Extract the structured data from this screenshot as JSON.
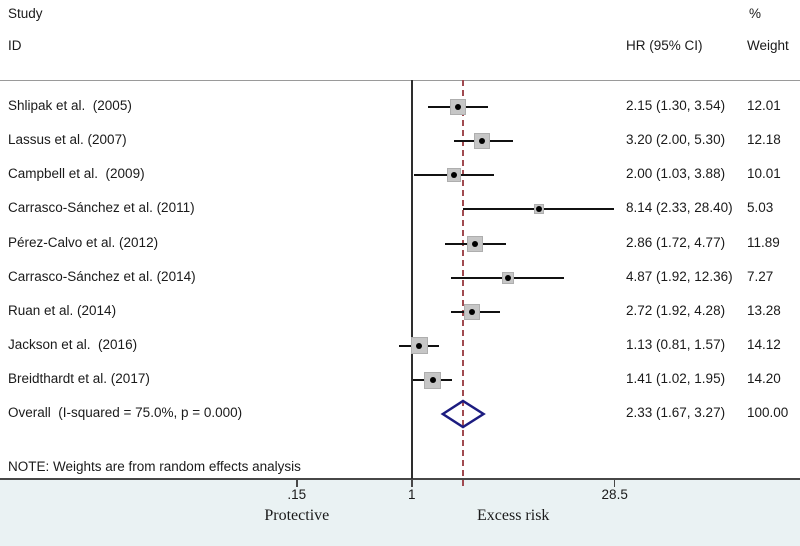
{
  "header": {
    "study": "Study",
    "id": "ID",
    "percent": "%",
    "hr": "HR (95% CI)",
    "weight": "Weight"
  },
  "chart_data": {
    "type": "forest",
    "title": "",
    "x_scale": "log",
    "x_tick_labels": [
      ".15",
      "1",
      "28.5"
    ],
    "x_tick_values": [
      0.15,
      1,
      28.5
    ],
    "null_line_value": 1,
    "overall_line_value": 2.33,
    "region_labels": {
      "left": "Protective",
      "right": "Excess risk"
    },
    "note": "NOTE: Weights are from random effects analysis",
    "studies": [
      {
        "label": "Shlipak et al.  (2005)",
        "hr": 2.15,
        "ci_low": 1.3,
        "ci_high": 3.54,
        "hr_text": "2.15 (1.30, 3.54)",
        "weight": 12.01,
        "weight_text": "12.01"
      },
      {
        "label": "Lassus et al. (2007)",
        "hr": 3.2,
        "ci_low": 2.0,
        "ci_high": 5.3,
        "hr_text": "3.20 (2.00, 5.30)",
        "weight": 12.18,
        "weight_text": "12.18"
      },
      {
        "label": "Campbell et al.  (2009)",
        "hr": 2.0,
        "ci_low": 1.03,
        "ci_high": 3.88,
        "hr_text": "2.00 (1.03, 3.88)",
        "weight": 10.01,
        "weight_text": "10.01"
      },
      {
        "label": "Carrasco-Sánchez et al. (2011)",
        "hr": 8.14,
        "ci_low": 2.33,
        "ci_high": 28.4,
        "hr_text": "8.14 (2.33, 28.40)",
        "weight": 5.03,
        "weight_text": "5.03"
      },
      {
        "label": "Pérez-Calvo et al. (2012)",
        "hr": 2.86,
        "ci_low": 1.72,
        "ci_high": 4.77,
        "hr_text": "2.86 (1.72, 4.77)",
        "weight": 11.89,
        "weight_text": "11.89"
      },
      {
        "label": "Carrasco-Sánchez et al. (2014)",
        "hr": 4.87,
        "ci_low": 1.92,
        "ci_high": 12.36,
        "hr_text": "4.87 (1.92, 12.36)",
        "weight": 7.27,
        "weight_text": "7.27"
      },
      {
        "label": "Ruan et al. (2014)",
        "hr": 2.72,
        "ci_low": 1.92,
        "ci_high": 4.28,
        "hr_text": "2.72 (1.92, 4.28)",
        "weight": 13.28,
        "weight_text": "13.28"
      },
      {
        "label": "Jackson et al.  (2016)",
        "hr": 1.13,
        "ci_low": 0.81,
        "ci_high": 1.57,
        "hr_text": "1.13 (0.81, 1.57)",
        "weight": 14.12,
        "weight_text": "14.12"
      },
      {
        "label": "Breidthardt et al. (2017)",
        "hr": 1.41,
        "ci_low": 1.02,
        "ci_high": 1.95,
        "hr_text": "1.41 (1.02, 1.95)",
        "weight": 14.2,
        "weight_text": "14.20"
      }
    ],
    "overall": {
      "label": "Overall  (I-squared = 75.0%, p = 0.000)",
      "hr": 2.33,
      "ci_low": 1.67,
      "ci_high": 3.27,
      "hr_text": "2.33 (1.67, 3.27)",
      "weight": 100.0,
      "weight_text": "100.00"
    }
  },
  "colors": {
    "diamond": "#1c1c80",
    "overall_dashed": "#a04a50",
    "marker_fill": "#c6c6c6",
    "marker_edge": "#aeaeae",
    "ci_line": "#111111",
    "null_line": "#2e2e2e",
    "band_bg": "#eaf2f3"
  }
}
